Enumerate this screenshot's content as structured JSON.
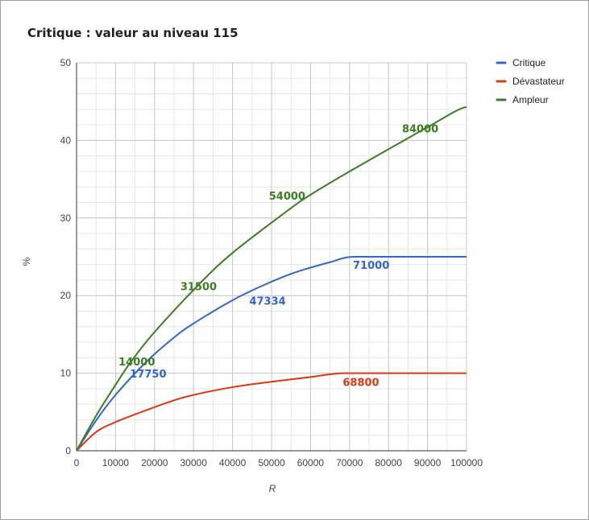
{
  "chart_data": {
    "type": "line",
    "title": "Critique : valeur au niveau 115",
    "xlabel": "R",
    "ylabel": "%",
    "xlim": [
      0,
      100000
    ],
    "ylim": [
      0,
      50
    ],
    "xticks": [
      0,
      10000,
      20000,
      30000,
      40000,
      50000,
      60000,
      70000,
      80000,
      90000,
      100000
    ],
    "yticks": [
      0,
      10,
      20,
      30,
      40,
      50
    ],
    "grid": true,
    "legend_position": "right",
    "series": [
      {
        "name": "Critique",
        "color": "#3366cc",
        "x": [
          0,
          5000,
          10000,
          17750,
          25000,
          30000,
          40000,
          47334,
          55000,
          60000,
          65000,
          71000,
          80000,
          90000,
          100000
        ],
        "y": [
          0,
          3.9,
          7.2,
          11.4,
          14.6,
          16.4,
          19.4,
          21.2,
          22.8,
          23.6,
          24.3,
          25,
          25,
          25,
          25
        ]
      },
      {
        "name": "Dévastateur",
        "color": "#dc3912",
        "x": [
          0,
          5000,
          10000,
          17750,
          25000,
          30000,
          40000,
          50000,
          60000,
          68800,
          80000,
          90000,
          100000
        ],
        "y": [
          0,
          2.4,
          3.7,
          5.2,
          6.5,
          7.2,
          8.2,
          8.9,
          9.5,
          10,
          10,
          10,
          10
        ]
      },
      {
        "name": "Ampleur",
        "color": "#3b7d23",
        "x": [
          0,
          5000,
          10000,
          14000,
          20000,
          31500,
          40000,
          54000,
          60000,
          70000,
          84000,
          90000,
          100000
        ],
        "y": [
          0,
          4.5,
          8.5,
          11.5,
          15.3,
          21.5,
          25.5,
          30.9,
          33,
          36,
          40,
          41.7,
          44.3
        ]
      }
    ],
    "annotations": [
      {
        "text": "17750",
        "series": "Critique",
        "x": 17750,
        "y": 11.4
      },
      {
        "text": "47334",
        "series": "Critique",
        "x": 47334,
        "y": 21.2
      },
      {
        "text": "71000",
        "series": "Critique",
        "x": 71000,
        "y": 25
      },
      {
        "text": "68800",
        "series": "Dévastateur",
        "x": 68800,
        "y": 10
      },
      {
        "text": "14000",
        "series": "Ampleur",
        "x": 14000,
        "y": 11.5
      },
      {
        "text": "31500",
        "series": "Ampleur",
        "x": 31500,
        "y": 21.5
      },
      {
        "text": "54000",
        "series": "Ampleur",
        "x": 54000,
        "y": 30.9
      },
      {
        "text": "84000",
        "series": "Ampleur",
        "x": 84000,
        "y": 40
      }
    ]
  }
}
